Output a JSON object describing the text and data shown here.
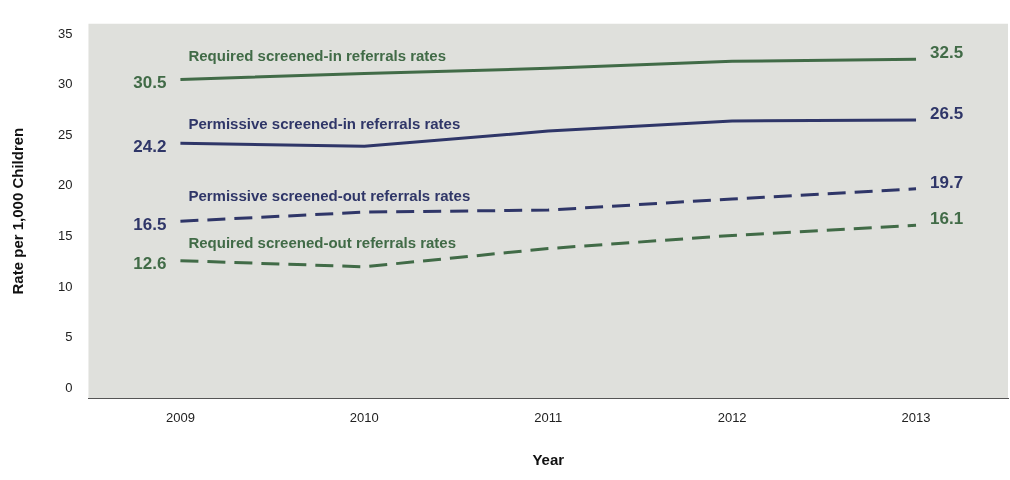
{
  "chart_data": {
    "type": "line",
    "xlabel": "Year",
    "ylabel": "Rate per 1,000 Children",
    "categories": [
      "2009",
      "2010",
      "2011",
      "2012",
      "2013"
    ],
    "ylim": [
      -1,
      36
    ],
    "yticks": [
      0,
      5,
      10,
      15,
      20,
      25,
      30,
      35
    ],
    "grid": false,
    "legend": false,
    "marker": "none",
    "series": [
      {
        "name": "Required screened-in referrals rates",
        "color": "#416b47",
        "line_style": "solid",
        "values": [
          30.5,
          31.1,
          31.6,
          32.3,
          32.5
        ],
        "value_labels": [
          "30.5",
          null,
          null,
          null,
          "32.5"
        ]
      },
      {
        "name": "Permissive screened-in referrals rates",
        "color": "#2f3668",
        "line_style": "solid",
        "values": [
          24.2,
          23.9,
          25.4,
          26.4,
          26.5
        ],
        "value_labels": [
          "24.2",
          null,
          null,
          null,
          "26.5"
        ]
      },
      {
        "name": "Permissive screened-out referrals rates",
        "color": "#2f3668",
        "line_style": "dashed",
        "values": [
          16.5,
          17.4,
          17.6,
          18.7,
          19.7
        ],
        "value_labels": [
          "16.5",
          null,
          null,
          null,
          "19.7"
        ]
      },
      {
        "name": "Required screened-out referrals rates",
        "color": "#416b47",
        "line_style": "dashed",
        "values": [
          12.6,
          12.0,
          13.8,
          15.1,
          16.1
        ],
        "value_labels": [
          "12.6",
          null,
          null,
          null,
          "16.1"
        ]
      }
    ]
  }
}
